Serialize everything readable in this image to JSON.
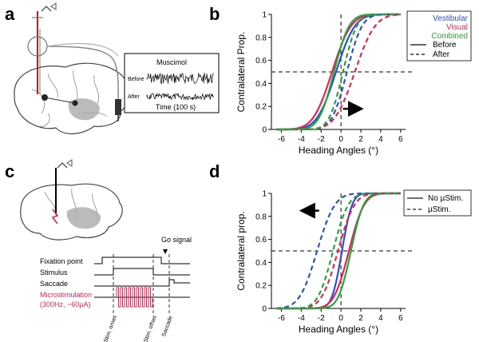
{
  "panels": {
    "a": "a",
    "b": "b",
    "c": "c",
    "d": "d"
  },
  "inset_a": {
    "title": "Muscimol",
    "before": "Before",
    "after": "After",
    "time": "Time (100 s)"
  },
  "panel_c": {
    "go_signal": "Go signal",
    "rows": [
      "Fixation point",
      "Stimulus",
      "Saccade"
    ],
    "micro_label": "Microstimulation",
    "micro_params": "(300Hz, ~60µA)",
    "markers": [
      "Stim. onset",
      "Stim. offset",
      "Saccade"
    ]
  },
  "colors": {
    "vestibular": "#2c50c8",
    "visual": "#e0245a",
    "combined": "#2aa33a"
  },
  "chart_data": [
    {
      "type": "line",
      "panel": "b",
      "xlabel": "Heading Angles (°)",
      "ylabel": "Contralateral Prop.",
      "xlim": [
        -7,
        6.5
      ],
      "ylim": [
        0,
        1
      ],
      "xticks": [
        "-6",
        "-4",
        "-2",
        "0",
        "2",
        "4",
        "6"
      ],
      "yticks": [
        "0",
        "0.2",
        "0.4",
        "0.6",
        "0.8",
        "1"
      ],
      "legend": {
        "placement": "right",
        "entries": [
          "Vestibular",
          "Visual",
          "Combined",
          "Before",
          "After"
        ]
      },
      "reference": {
        "x": 0,
        "y": 0.5
      },
      "arrow_direction": "right",
      "series": [
        {
          "condition": "Vestibular",
          "style": "solid",
          "mu": -0.5,
          "sigma": 1.5
        },
        {
          "condition": "Visual",
          "style": "solid",
          "mu": -0.9,
          "sigma": 1.5
        },
        {
          "condition": "Combined",
          "style": "solid",
          "mu": -0.7,
          "sigma": 1.2
        },
        {
          "condition": "Vestibular",
          "style": "dashed",
          "mu": 0.6,
          "sigma": 1.2
        },
        {
          "condition": "Visual",
          "style": "dashed",
          "mu": 1.4,
          "sigma": 1.6
        },
        {
          "condition": "Combined",
          "style": "dashed",
          "mu": 0.2,
          "sigma": 1.1
        }
      ]
    },
    {
      "type": "line",
      "panel": "d",
      "xlabel": "Heading Angles (°)",
      "ylabel": "Contralateral prop.",
      "xlim": [
        -7,
        6.5
      ],
      "ylim": [
        0,
        1
      ],
      "xticks": [
        "-6",
        "-4",
        "-2",
        "0",
        "2",
        "4",
        "6"
      ],
      "yticks": [
        "0",
        "0.2",
        "0.4",
        "0.6",
        "0.8",
        "1"
      ],
      "legend": {
        "placement": "top-right",
        "entries": [
          "No µStim.",
          "µStim."
        ]
      },
      "reference": {
        "x": 0,
        "y": 0.5
      },
      "arrow_direction": "left",
      "series": [
        {
          "condition": "Vestibular",
          "style": "solid",
          "mu": 0.1,
          "sigma": 0.8
        },
        {
          "condition": "Visual",
          "style": "solid",
          "mu": 0.8,
          "sigma": 1.2
        },
        {
          "condition": "Combined",
          "style": "solid",
          "mu": 1.0,
          "sigma": 1.0
        },
        {
          "condition": "Vestibular",
          "style": "dashed",
          "mu": -2.4,
          "sigma": 1.4
        },
        {
          "condition": "Visual",
          "style": "dashed",
          "mu": -0.3,
          "sigma": 1.3
        },
        {
          "condition": "Combined",
          "style": "dashed",
          "mu": -0.8,
          "sigma": 1.2
        }
      ]
    }
  ]
}
